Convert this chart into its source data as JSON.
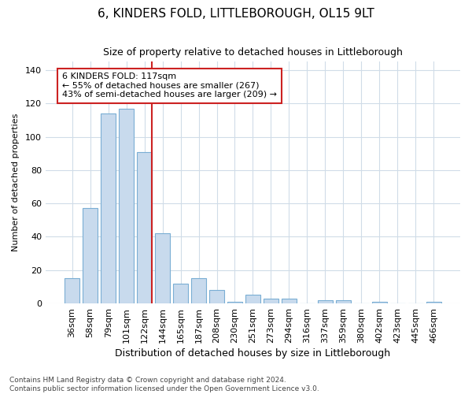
{
  "title": "6, KINDERS FOLD, LITTLEBOROUGH, OL15 9LT",
  "subtitle": "Size of property relative to detached houses in Littleborough",
  "xlabel": "Distribution of detached houses by size in Littleborough",
  "ylabel": "Number of detached properties",
  "categories": [
    "36sqm",
    "58sqm",
    "79sqm",
    "101sqm",
    "122sqm",
    "144sqm",
    "165sqm",
    "187sqm",
    "208sqm",
    "230sqm",
    "251sqm",
    "273sqm",
    "294sqm",
    "316sqm",
    "337sqm",
    "359sqm",
    "380sqm",
    "402sqm",
    "423sqm",
    "445sqm",
    "466sqm"
  ],
  "values": [
    15,
    57,
    114,
    117,
    91,
    42,
    12,
    15,
    8,
    1,
    5,
    3,
    3,
    0,
    2,
    2,
    0,
    1,
    0,
    0,
    1
  ],
  "bar_color": "#c8daed",
  "bar_edge_color": "#7aaed4",
  "vline_color": "#cc2222",
  "vline_x_index": 4,
  "annotation_label": "6 KINDERS FOLD: 117sqm",
  "annotation_line1": "← 55% of detached houses are smaller (267)",
  "annotation_line2": "43% of semi-detached houses are larger (209) →",
  "annotation_box_facecolor": "#ffffff",
  "annotation_box_edgecolor": "#cc2222",
  "ylim": [
    0,
    145
  ],
  "yticks": [
    0,
    20,
    40,
    60,
    80,
    100,
    120,
    140
  ],
  "footnote1": "Contains HM Land Registry data © Crown copyright and database right 2024.",
  "footnote2": "Contains public sector information licensed under the Open Government Licence v3.0.",
  "bg_color": "#ffffff",
  "plot_bg_color": "#ffffff",
  "grid_color": "#d0dce8",
  "title_fontsize": 11,
  "subtitle_fontsize": 9,
  "xlabel_fontsize": 9,
  "ylabel_fontsize": 8,
  "tick_fontsize": 8,
  "footnote_fontsize": 6.5
}
